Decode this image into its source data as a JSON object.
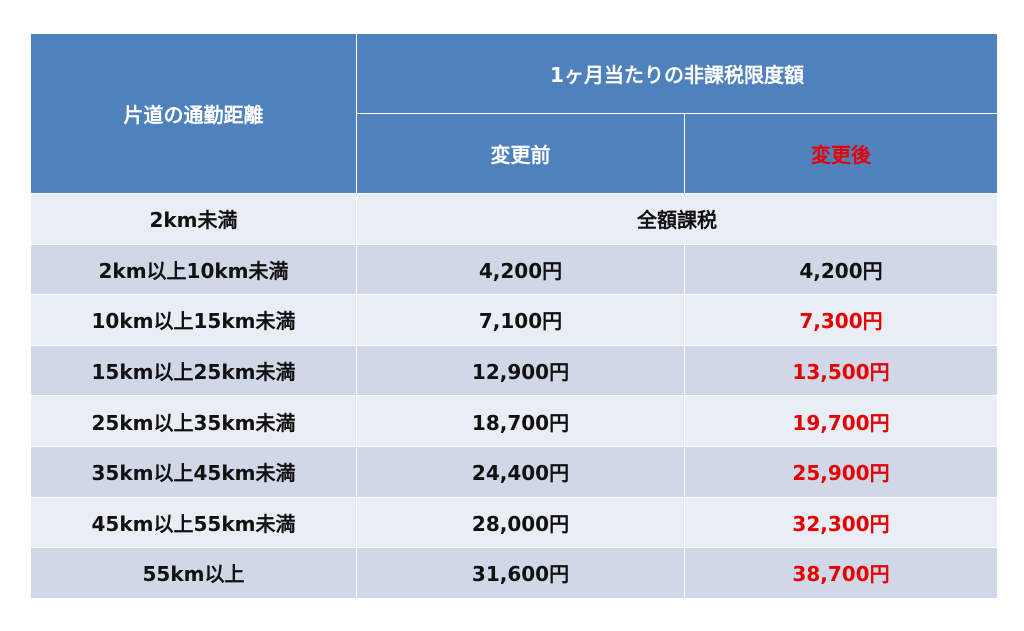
{
  "header": {
    "distance": "片道の通勤距離",
    "limit": "1ヶ月当たりの非課税限度額",
    "before": "変更前",
    "after": "変更後"
  },
  "rows": [
    [
      "2km未満",
      "全額課税"
    ],
    [
      "2km以上10km未満",
      "4,200円",
      "4,200円"
    ],
    [
      "10km以上15km未満",
      "7,100円",
      "7,300円"
    ],
    [
      "15km以上25km未満",
      "12,900円",
      "13,500円"
    ],
    [
      "25km以上35km未満",
      "18,700円",
      "19,700円"
    ],
    [
      "35km以上45km未満",
      "24,400円",
      "25,900円"
    ],
    [
      "45km以上55km未満",
      "28,000円",
      "32,300円"
    ],
    [
      "55km以上",
      "31,600円",
      "38,700円"
    ]
  ]
}
